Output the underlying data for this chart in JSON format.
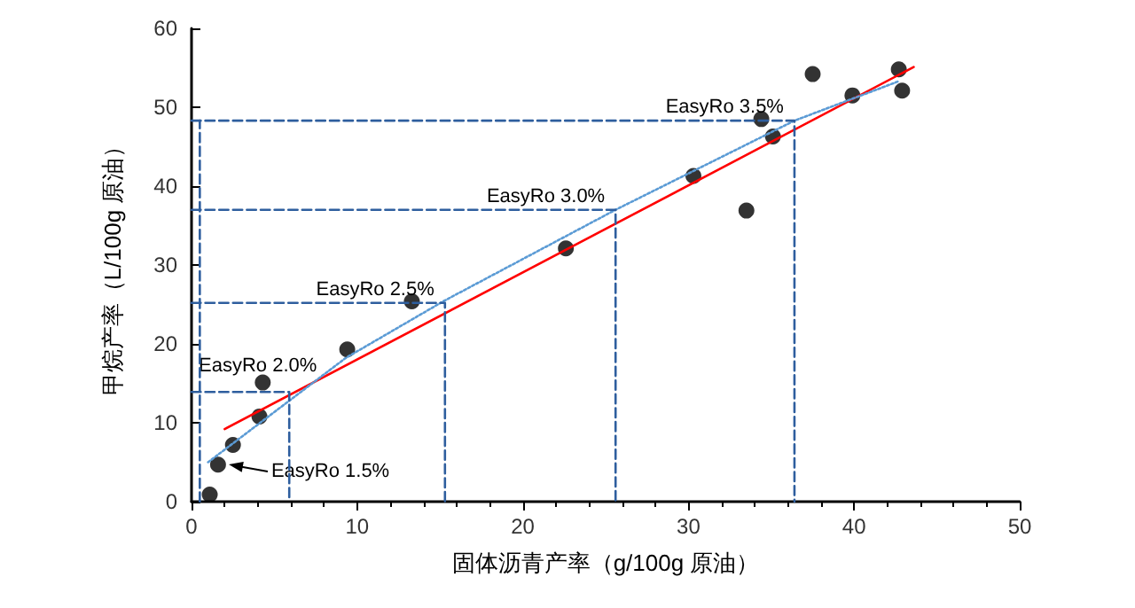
{
  "chart_data": {
    "type": "scatter",
    "xlabel": "固体沥青产率（g/100g 原油）",
    "ylabel": "甲烷产率（L/100g 原油）",
    "x": [
      1.1,
      1.6,
      2.5,
      4.1,
      4.3,
      9.4,
      13.3,
      22.6,
      30.3,
      33.5,
      34.4,
      35.1,
      37.5,
      39.9,
      42.7,
      42.9
    ],
    "series": [
      {
        "color": "#000000",
        "values": [
          0.9,
          4.7,
          7.2,
          10.8,
          15.1,
          19.3,
          25.4,
          32.1,
          41.3,
          36.9,
          48.5,
          46.3,
          54.2,
          51.5,
          54.8,
          52.1
        ]
      },
      {
        "type": "line",
        "color": "#ff0000",
        "line_style": "solid",
        "marker": "none",
        "x": [
          2.0,
          43.6
        ],
        "values": [
          9.2,
          55.1
        ]
      },
      {
        "type": "line",
        "color": "#5b9bd5",
        "line_style": "dotted",
        "marker": "none",
        "x": [
          1.0,
          9.3,
          15.2,
          25.6,
          36.4,
          42.7
        ],
        "values": [
          5.0,
          18.2,
          25.4,
          37.0,
          48.3,
          53.3
        ]
      },
      {
        "type": "line",
        "color": "#2e5e9e",
        "line_style": "dashed",
        "marker": "none",
        "x": [
          0,
          5.9,
          5.9
        ],
        "values": [
          13.9,
          13.9,
          0
        ]
      },
      {
        "type": "line",
        "color": "#2e5e9e",
        "line_style": "dashed",
        "marker": "none",
        "x": [
          0,
          15.3,
          15.3
        ],
        "values": [
          25.2,
          25.2,
          0
        ]
      },
      {
        "type": "line",
        "color": "#2e5e9e",
        "line_style": "dashed",
        "marker": "none",
        "x": [
          0,
          25.6,
          25.6
        ],
        "values": [
          37.0,
          37.0,
          0
        ]
      },
      {
        "type": "line",
        "color": "#2e5e9e",
        "line_style": "dashed",
        "marker": "none",
        "x": [
          0,
          36.4,
          36.4
        ],
        "values": [
          48.3,
          48.3,
          0
        ]
      },
      {
        "type": "line",
        "color": "#2e5e9e",
        "line_style": "dashed",
        "marker": "none",
        "x": [
          0.5,
          0.5
        ],
        "values": [
          0,
          48.3
        ]
      }
    ],
    "annotations": [
      {
        "text": "EasyRo 1.5%",
        "x": 1.6,
        "y": 4.7
      },
      {
        "text": "EasyRo 2.0%",
        "x": 5.9,
        "y": 13.9
      },
      {
        "text": "EasyRo 2.5%",
        "x": 15.3,
        "y": 25.2
      },
      {
        "text": "EasyRo 3.0%",
        "x": 25.6,
        "y": 37.0
      },
      {
        "text": "EasyRo 3.5%",
        "x": 36.4,
        "y": 48.3
      }
    ],
    "xlim": [
      0,
      50
    ],
    "xticks": [
      0,
      10,
      20,
      30,
      40,
      50
    ],
    "ylim": [
      0,
      60
    ],
    "yticks": [
      0,
      10,
      20,
      30,
      40,
      50,
      60
    ],
    "marker": "circle",
    "grid": false
  }
}
